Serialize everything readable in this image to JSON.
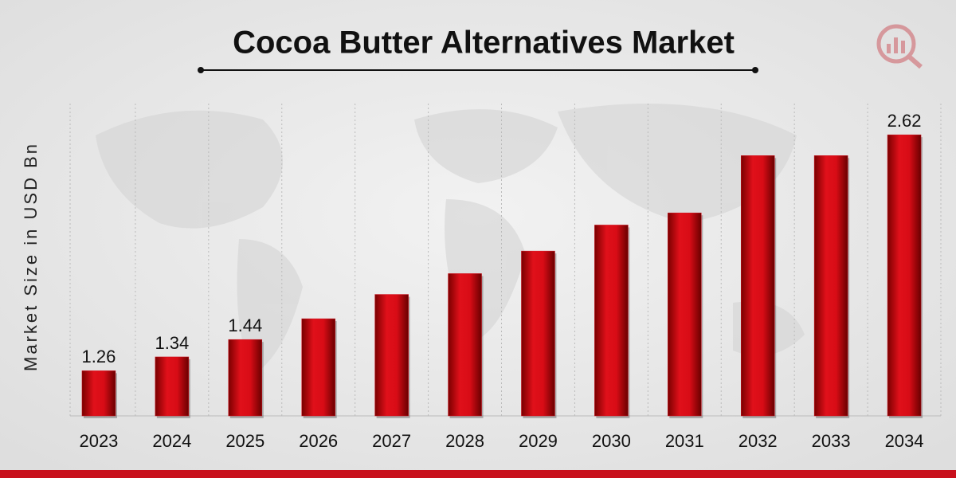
{
  "chart_data": {
    "type": "bar",
    "title": "Cocoa Butter Alternatives Market",
    "y_label": "Market Size in USD Bn",
    "categories": [
      "2023",
      "2024",
      "2025",
      "2026",
      "2027",
      "2028",
      "2029",
      "2030",
      "2031",
      "2032",
      "2033",
      "2034"
    ],
    "values": [
      1.26,
      1.34,
      1.44,
      1.56,
      1.7,
      1.82,
      1.95,
      2.1,
      2.17,
      2.5,
      2.5,
      2.62
    ],
    "value_labels": [
      "1.26",
      "1.34",
      "1.44",
      null,
      null,
      null,
      null,
      null,
      null,
      null,
      null,
      "2.62"
    ],
    "color": "#d0101c",
    "ylim": [
      1,
      2.8
    ],
    "grid": true
  }
}
